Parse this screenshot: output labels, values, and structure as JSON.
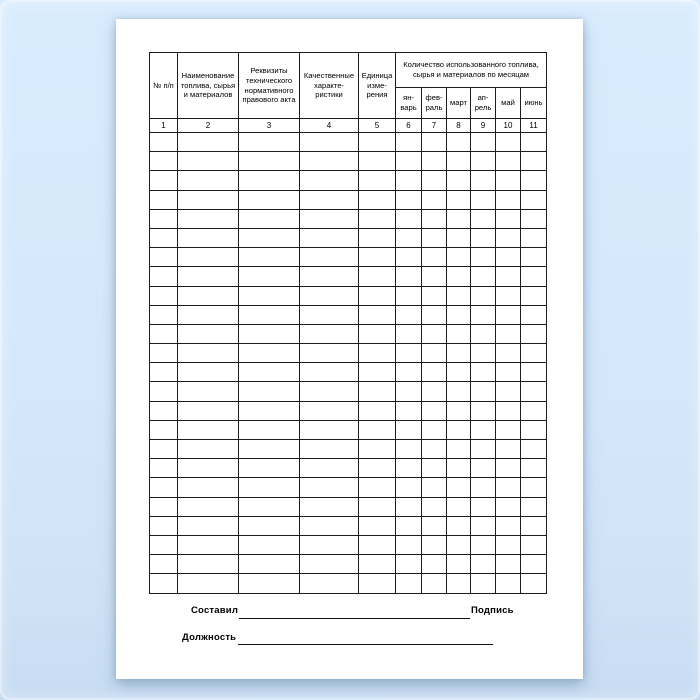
{
  "colors": {
    "background_top": "#d9ecfe",
    "background_bottom": "#c7dcf2",
    "page_background": "#ffffff",
    "table_border": "#1c1c1c",
    "text": "#000000"
  },
  "table": {
    "header": {
      "col_num": "№ п/п",
      "col_name": "Наименование\nтоплива, сырья\nи материалов",
      "col_requisites": "Реквизиты\nтехнического\nнормативного\nправового акта",
      "col_quality": "Качественные\nхаракте-\nристики",
      "col_unit": "Единица\nизме-\nрения",
      "months_group": "Количество использованного топлива,\nсырья и материалов по месяцам",
      "months": [
        "ян-\nварь",
        "фев-\nраль",
        "март",
        "ап-\nрель",
        "май",
        "июнь"
      ],
      "column_numbers": [
        "1",
        "2",
        "3",
        "4",
        "5",
        "6",
        "7",
        "8",
        "9",
        "10",
        "11"
      ]
    },
    "body": {
      "empty_row_count": 24,
      "column_count": 11
    }
  },
  "footer": {
    "composed_label": "Составил",
    "signature_label": "Подпись",
    "position_label": "Должность"
  }
}
